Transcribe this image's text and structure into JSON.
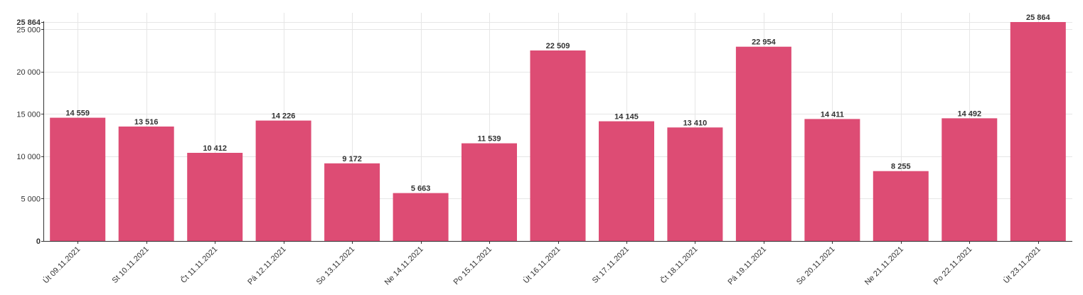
{
  "chart_data": {
    "type": "bar",
    "categories": [
      "Út 09.11.2021",
      "St 10.11.2021",
      "Čt 11.11.2021",
      "Pá 12.11.2021",
      "So 13.11.2021",
      "Ne 14.11.2021",
      "Po 15.11.2021",
      "Út 16.11.2021",
      "St 17.11.2021",
      "Čt 18.11.2021",
      "Pá 19.11.2021",
      "So 20.11.2021",
      "Ne 21.11.2021",
      "Po 22.11.2021",
      "Út 23.11.2021"
    ],
    "values": [
      14559,
      13516,
      10412,
      14226,
      9172,
      5663,
      11539,
      22509,
      14145,
      13410,
      22954,
      14411,
      8255,
      14492,
      25864
    ],
    "value_labels": [
      "14 559",
      "13 516",
      "10 412",
      "14 226",
      "9 172",
      "5 663",
      "11 539",
      "22 509",
      "14 145",
      "13 410",
      "22 954",
      "14 411",
      "8 255",
      "14 492",
      "25 864"
    ],
    "y_ticks": [
      {
        "value": 0,
        "label": "0"
      },
      {
        "value": 5000,
        "label": "5 000"
      },
      {
        "value": 10000,
        "label": "10 000"
      },
      {
        "value": 15000,
        "label": "15 000"
      },
      {
        "value": 20000,
        "label": "20 000"
      },
      {
        "value": 25000,
        "label": "25 000"
      },
      {
        "value": 25864,
        "label": "25 864"
      }
    ],
    "ylim": [
      0,
      25864
    ],
    "title": "",
    "xlabel": "",
    "ylabel": "",
    "grid": true,
    "legend": "none",
    "bar_color": "#dc4670"
  }
}
